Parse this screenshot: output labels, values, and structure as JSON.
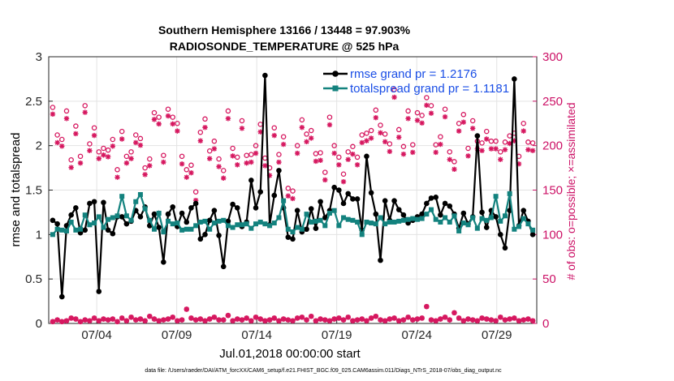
{
  "chart_data": {
    "type": "line",
    "title_line1": "Southern Hemisphere 13166 / 13448 = 97.903%",
    "title_line2": "RADIOSONDE_TEMPERATURE @ 525 hPa",
    "xlabel": "Jul.01,2018 00:00:00 start",
    "ylabel_left": "rmse and totalspread",
    "ylabel_right": "# of obs: o=possible; ×=assimilated",
    "ylim_left": [
      0,
      3
    ],
    "ylim_right": [
      0,
      300
    ],
    "xlim": [
      0,
      30.5
    ],
    "yticks_left": [
      "0",
      "0.5",
      "1",
      "1.5",
      "2",
      "2.5",
      "3"
    ],
    "yticks_right": [
      "0",
      "50",
      "100",
      "150",
      "200",
      "250",
      "300"
    ],
    "xticks": [
      {
        "label": "07/04",
        "value": 3
      },
      {
        "label": "07/09",
        "value": 8
      },
      {
        "label": "07/14",
        "value": 13
      },
      {
        "label": "07/19",
        "value": 18
      },
      {
        "label": "07/24",
        "value": 23
      },
      {
        "label": "07/29",
        "value": 28
      }
    ],
    "grid": true,
    "legend_position": "top-right",
    "colors": {
      "rmse": "#000000",
      "spread": "#13827e",
      "obs": "#d6175f",
      "grid": "#e3e3e3"
    },
    "series": [
      {
        "name": "rmse grand pr = 1.2176",
        "key": "rmse",
        "values": [
          1.16,
          1.12,
          0.3,
          1.1,
          1.22,
          1.3,
          1.02,
          1.05,
          1.35,
          1.37,
          0.36,
          1.36,
          1.05,
          1.01,
          1.2,
          1.2,
          1.12,
          1.15,
          1.27,
          1.2,
          1.31,
          1.1,
          1.23,
          1.08,
          0.69,
          1.23,
          1.31,
          1.09,
          1.24,
          1.14,
          1.3,
          1.35,
          0.95,
          1.0,
          1.16,
          1.27,
          0.99,
          0.64,
          1.15,
          1.34,
          1.3,
          1.09,
          1.14,
          1.61,
          1.3,
          1.48,
          2.79,
          1.11,
          1.44,
          1.72,
          1.3,
          0.97,
          0.95,
          1.27,
          1.03,
          1.06,
          1.29,
          1.07,
          1.37,
          1.19,
          1.27,
          1.53,
          1.5,
          1.35,
          1.46,
          1.4,
          1.4,
          1.05,
          1.88,
          1.47,
          1.23,
          0.71,
          1.38,
          1.16,
          1.38,
          1.28,
          1.22,
          1.13,
          1.16,
          1.2,
          1.23,
          1.35,
          1.41,
          1.42,
          1.22,
          1.35,
          1.32,
          1.23,
          1.07,
          1.24,
          1.12,
          1.2,
          2.11,
          1.25,
          1.08,
          1.27,
          1.2,
          1.0,
          0.85,
          1.27,
          2.75,
          1.1,
          1.27,
          1.15,
          1.0
        ]
      },
      {
        "name": "totalspread grand pr = 1.1181",
        "key": "spread",
        "values": [
          1.0,
          1.06,
          1.05,
          1.04,
          1.14,
          1.05,
          1.06,
          1.22,
          1.11,
          1.13,
          1.2,
          1.08,
          1.17,
          1.19,
          1.21,
          1.43,
          1.21,
          1.16,
          1.37,
          1.45,
          1.29,
          1.16,
          1.06,
          1.24,
          1.03,
          1.15,
          1.12,
          1.13,
          1.05,
          1.06,
          1.06,
          1.1,
          1.14,
          1.15,
          1.06,
          1.13,
          1.15,
          1.16,
          1.1,
          1.08,
          1.11,
          1.11,
          1.12,
          1.07,
          1.12,
          1.14,
          1.12,
          1.1,
          1.13,
          1.19,
          1.38,
          1.06,
          1.03,
          1.08,
          1.06,
          1.23,
          1.14,
          1.15,
          1.16,
          1.1,
          1.24,
          1.27,
          1.1,
          1.19,
          1.17,
          1.16,
          1.14,
          1.0,
          1.14,
          1.13,
          1.12,
          1.19,
          1.12,
          1.14,
          1.14,
          1.15,
          1.16,
          1.17,
          1.18,
          1.17,
          1.18,
          1.23,
          1.28,
          1.17,
          1.14,
          1.19,
          1.14,
          1.21,
          1.04,
          1.13,
          1.11,
          1.19,
          1.07,
          1.18,
          1.16,
          1.19,
          1.43,
          1.15,
          1.21,
          1.46,
          1.06,
          1.09,
          1.18,
          1.12,
          1.05
        ]
      },
      {
        "name": "possible",
        "key": "possible",
        "axis": "right",
        "values": [
          243,
          212,
          207,
          239,
          184,
          222,
          188,
          245,
          202,
          220,
          193,
          197,
          195,
          207,
          173,
          216,
          188,
          193,
          212,
          208,
          175,
          185,
          237,
          232,
          189,
          241,
          232,
          225,
          188,
          173,
          178,
          148,
          215,
          230,
          194,
          205,
          185,
          172,
          239,
          197,
          187,
          228,
          189,
          190,
          200,
          224,
          186,
          175,
          220,
          190,
          210,
          152,
          149,
          200,
          229,
          213,
          217,
          191,
          192,
          170,
          232,
          200,
          187,
          168,
          193,
          199,
          187,
          212,
          214,
          217,
          240,
          223,
          213,
          202,
          263,
          218,
          199,
          239,
          201,
          237,
          234,
          254,
          245,
          201,
          210,
          241,
          193,
          182,
          225,
          235,
          197,
          228,
          205,
          203,
          216,
          205,
          205,
          193,
          204,
          211,
          214,
          188,
          225,
          204,
          203
        ]
      },
      {
        "name": "assimilated",
        "key": "assimilated",
        "axis": "right",
        "values": [
          240,
          208,
          204,
          235,
          180,
          218,
          185,
          242,
          199,
          216,
          190,
          194,
          192,
          204,
          169,
          212,
          185,
          190,
          208,
          205,
          172,
          182,
          234,
          229,
          186,
          238,
          229,
          221,
          184,
          169,
          174,
          143,
          210,
          225,
          190,
          201,
          181,
          168,
          235,
          193,
          183,
          224,
          185,
          186,
          196,
          220,
          182,
          171,
          216,
          186,
          206,
          148,
          145,
          196,
          225,
          209,
          213,
          187,
          188,
          166,
          228,
          196,
          183,
          164,
          189,
          195,
          183,
          208,
          210,
          213,
          236,
          219,
          209,
          198,
          259,
          214,
          195,
          235,
          197,
          233,
          230,
          250,
          241,
          197,
          206,
          237,
          189,
          178,
          221,
          231,
          193,
          224,
          201,
          199,
          212,
          201,
          201,
          189,
          200,
          207,
          210,
          184,
          221,
          200,
          199
        ]
      }
    ],
    "bottom_possible": [
      2,
      4,
      2,
      3,
      6,
      5,
      2,
      4,
      3,
      6,
      3,
      5,
      4,
      5,
      2,
      6,
      3,
      7,
      4,
      5,
      3,
      8,
      5,
      3,
      4,
      5,
      7,
      3,
      4,
      16,
      6,
      4,
      5,
      3,
      5,
      7,
      4,
      4,
      9,
      3,
      5,
      4,
      6,
      3,
      7,
      5,
      3,
      4,
      6,
      3,
      5,
      4,
      3,
      6,
      7,
      4,
      8,
      3,
      5,
      4,
      3,
      5,
      6,
      4,
      7,
      3,
      4,
      5,
      3,
      6,
      8,
      4,
      3,
      5,
      6,
      3,
      4,
      7,
      4,
      5,
      6,
      19,
      4,
      3,
      5,
      7,
      4,
      12,
      6,
      3,
      5,
      4,
      3,
      6,
      5,
      4,
      3,
      7,
      4,
      5,
      6,
      3,
      4,
      5,
      3
    ],
    "footer": "data file: /Users/raeder/DAI/ATM_forcXX/CAM6_setup/f.e21.FHIST_BGC.f09_025.CAM6assim.011/Diags_NTrS_2018-07/obs_diag_output.nc"
  }
}
